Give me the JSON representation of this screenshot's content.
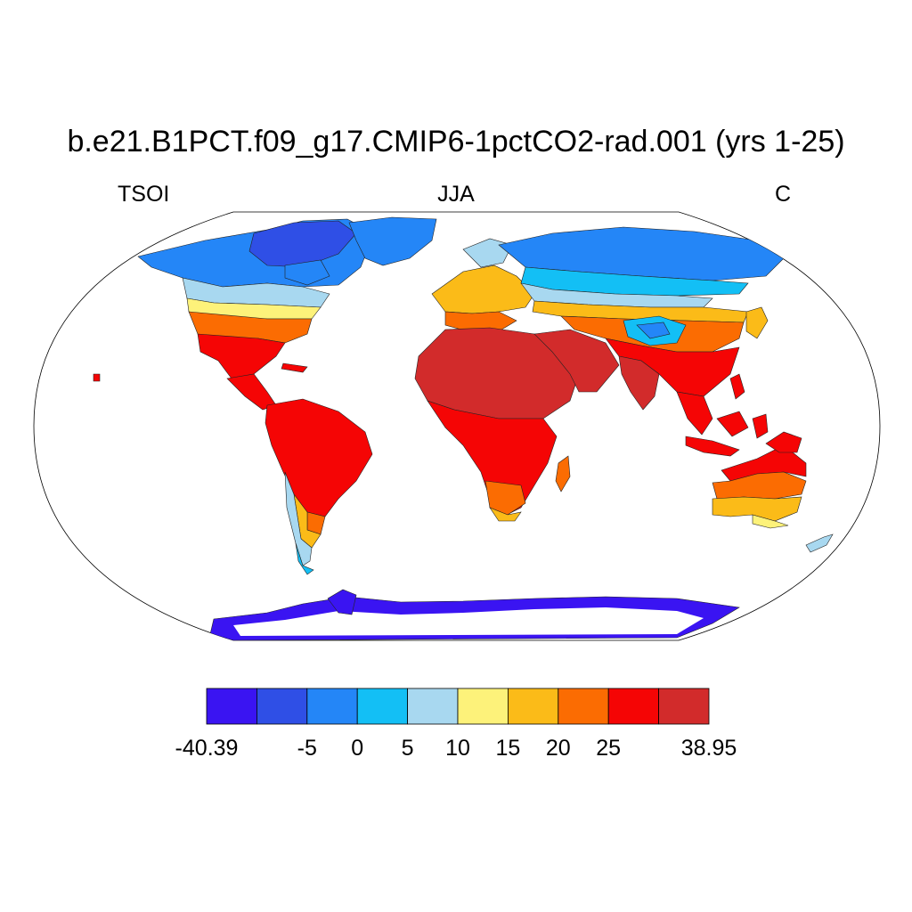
{
  "header": {
    "title": "b.e21.B1PCT.f09_g17.CMIP6-1pctCO2-rad.001 (yrs 1-25)",
    "variable": "TSOI",
    "season": "JJA",
    "units": "C"
  },
  "colorbar": {
    "colors": [
      "#3a14f2",
      "#2f4fe6",
      "#2486f7",
      "#13bff5",
      "#a8d8f0",
      "#fdf27a",
      "#fbbb18",
      "#fb6c02",
      "#f50505",
      "#d22b2b"
    ],
    "tick_labels": [
      "-40.39",
      "-5",
      "0",
      "5",
      "10",
      "15",
      "20",
      "25",
      "38.95"
    ]
  }
}
